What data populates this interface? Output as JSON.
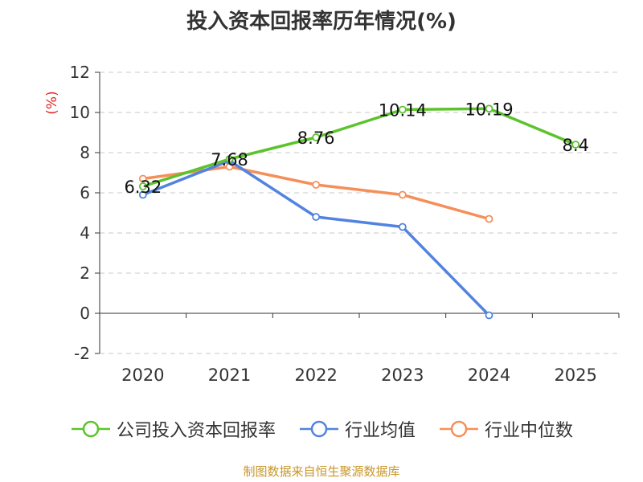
{
  "chart_data": {
    "type": "line",
    "title": "投入资本回报率历年情况(%)",
    "ylabel": "(%)",
    "xlabel": "",
    "ylim": [
      -2,
      12
    ],
    "yticks": [
      -2,
      0,
      2,
      4,
      6,
      8,
      10,
      12
    ],
    "categories": [
      "2020",
      "2021",
      "2022",
      "2023",
      "2024",
      "2025"
    ],
    "grid": true,
    "legend_position": "bottom",
    "series": [
      {
        "name": "公司投入资本回报率",
        "color": "#5cc32c",
        "values": [
          6.32,
          7.68,
          8.76,
          10.14,
          10.19,
          8.4
        ],
        "labels": [
          "6.32",
          "7.68",
          "8.76",
          "10.14",
          "10.19",
          "8.4"
        ]
      },
      {
        "name": "行业均值",
        "color": "#5283e0",
        "values": [
          5.9,
          7.6,
          4.8,
          4.3,
          -0.1,
          null
        ]
      },
      {
        "name": "行业中位数",
        "color": "#f58f5a",
        "values": [
          6.7,
          7.3,
          6.4,
          5.9,
          4.7,
          null
        ]
      }
    ],
    "source": "制图数据来自恒生聚源数据库"
  }
}
